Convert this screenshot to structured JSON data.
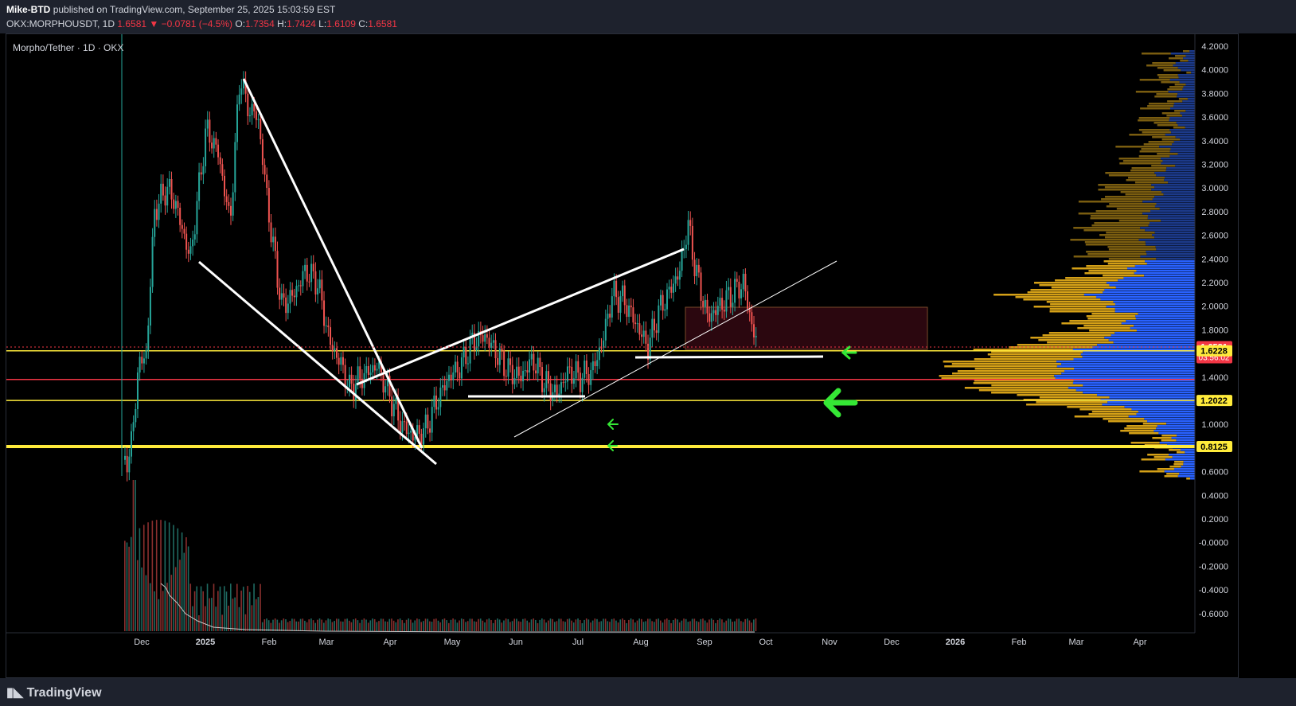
{
  "header": {
    "author": "Mike-BTD",
    "published": "published on TradingView.com, September 25, 2025 15:03:59 EST",
    "symbol": "OKX:MORPHOUSDT, 1D",
    "last": "1.6581",
    "change": "−0.0781 (−4.5%)",
    "o_label": "O:",
    "o_val": "1.7354",
    "h_label": "H:",
    "h_val": "1.7424",
    "l_label": "L:",
    "l_val": "1.6109",
    "c_label": "C:",
    "c_val": "1.6581"
  },
  "chart": {
    "title": "Morpho/Tether · 1D · OKX",
    "price_axis": [
      "4.2000",
      "4.0000",
      "3.8000",
      "3.6000",
      "3.4000",
      "3.2000",
      "3.0000",
      "2.8000",
      "2.6000",
      "2.4000",
      "2.2000",
      "2.0000",
      "1.8000",
      "1.6000",
      "1.4000",
      "1.2000",
      "1.0000",
      "0.8000",
      "0.6000",
      "0.4000",
      "0.2000",
      "-0.0000",
      "-0.2000",
      "-0.4000",
      "-0.6000"
    ],
    "price_badges": [
      {
        "value": "1.6581",
        "sub": "03:56:02",
        "color": "#f23645"
      },
      {
        "value": "1.6228",
        "color": "#ffeb3b"
      },
      {
        "value": "1.2022",
        "color": "#ffeb3b"
      },
      {
        "value": "0.8125",
        "color": "#ffeb3b"
      }
    ],
    "time_axis": [
      "Dec",
      "2025",
      "Feb",
      "Mar",
      "Apr",
      "May",
      "Jun",
      "Jul",
      "Aug",
      "Sep",
      "Oct",
      "Nov",
      "Dec",
      "2026",
      "Feb",
      "Mar",
      "Apr"
    ],
    "horizontal_levels": [
      {
        "price": 1.6228,
        "color": "#ffeb3b"
      },
      {
        "price": 1.38,
        "color": "#f23645"
      },
      {
        "price": 1.2022,
        "color": "#ffeb3b"
      },
      {
        "price": 0.8125,
        "color": "#ffeb3b"
      }
    ],
    "colors": {
      "up": "#26a69a",
      "down": "#ef5350",
      "profile_gold": "#d4a017",
      "profile_blue": "#2962ff"
    }
  },
  "footer": {
    "brand": "TradingView"
  }
}
